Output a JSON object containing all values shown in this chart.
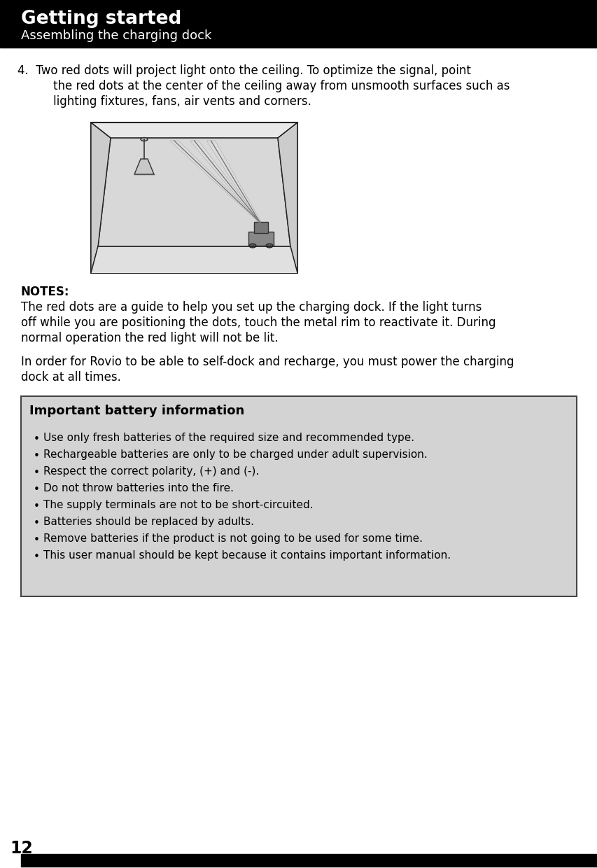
{
  "header_bg": "#000000",
  "header_text1": "Getting started",
  "header_text2": "Assembling the charging dock",
  "header_text1_size": 19,
  "header_text2_size": 13,
  "page_bg": "#ffffff",
  "page_number": "12",
  "footer_bg": "#000000",
  "notes_title": "NOTES:",
  "notes_lines": [
    "The red dots are a guide to help you set up the charging dock. If the light turns",
    "off while you are positioning the dots, touch the metal rim to reactivate it. During",
    "normal operation the red light will not be lit."
  ],
  "para2_lines": [
    "In order for Rovio to be able to self-dock and recharge, you must power the charging",
    "dock at all times."
  ],
  "battery_title": "Important battery information",
  "battery_bullets": [
    "Use only fresh batteries of the required size and recommended type.",
    "Rechargeable batteries are only to be charged under adult supervision.",
    "Respect the correct polarity, (+) and (-).",
    "Do not throw batteries into the fire.",
    "The supply terminals are not to be short-circuited.",
    "Batteries should be replaced by adults.",
    "Remove batteries if the product is not going to be used for some time.",
    "This user manual should be kept because it contains important information."
  ],
  "battery_box_bg": "#d3d3d3",
  "battery_box_border": "#444444",
  "step4_line1": "4.  Two red dots will project light onto the ceiling. To optimize the signal, point",
  "step4_line2": "    the red dots at the center of the ceiling away from unsmooth surfaces such as",
  "step4_line3": "    lighting fixtures, fans, air vents and corners."
}
